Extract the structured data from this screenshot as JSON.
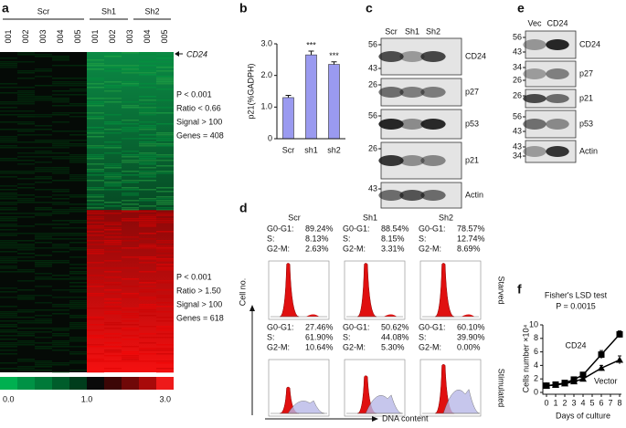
{
  "panels": {
    "a": {
      "label": "a",
      "groups": [
        "Scr",
        "Sh1",
        "Sh2"
      ],
      "samples": [
        "001",
        "002",
        "003",
        "004",
        "005",
        "001",
        "002",
        "003",
        "004",
        "005"
      ],
      "gene": "CD24",
      "blocks": [
        [
          "P < 0.001",
          "Ratio < 0.66",
          "Signal > 100",
          "Genes = 408"
        ],
        [
          "P < 0.001",
          "Ratio > 1.50",
          "Signal > 100",
          "Genes = 618"
        ]
      ],
      "scale": [
        "0.0",
        "1.0",
        "3.0"
      ]
    },
    "c": {
      "label": "c",
      "lanes": [
        "Scr",
        "Sh1",
        "Sh2"
      ],
      "blots": [
        {
          "name": "CD24",
          "markers": [
            56,
            43
          ]
        },
        {
          "name": "p27",
          "markers": [
            26
          ]
        },
        {
          "name": "p53",
          "markers": [
            56
          ]
        },
        {
          "name": "p21",
          "markers": [
            26
          ]
        },
        {
          "name": "Actin",
          "markers": [
            43
          ]
        }
      ]
    },
    "d": {
      "label": "d",
      "columns": [
        "Scr",
        "Sh1",
        "Sh2"
      ],
      "rows": [
        "Starved",
        "Stimulated"
      ],
      "phases": [
        "G0-G1:",
        "S:",
        "G2-M:"
      ],
      "stats": [
        [
          [
            "89.24%",
            "8.13%",
            "2.63%"
          ],
          [
            "88.54%",
            "8.15%",
            "3.31%"
          ],
          [
            "78.57%",
            "12.74%",
            "8.69%"
          ]
        ],
        [
          [
            "27.46%",
            "61.90%",
            "10.64%"
          ],
          [
            "50.62%",
            "44.08%",
            "5.30%"
          ],
          [
            "60.10%",
            "39.90%",
            "0.00%"
          ]
        ]
      ],
      "ylabel": "Cell no.",
      "xlabel": "DNA content"
    },
    "e": {
      "label": "e",
      "lanes": [
        "Vec",
        "CD24"
      ],
      "blots": [
        {
          "name": "CD24",
          "markers": [
            56,
            43
          ]
        },
        {
          "name": "p27",
          "markers": [
            34,
            26
          ]
        },
        {
          "name": "p21",
          "markers": [
            26
          ]
        },
        {
          "name": "p53",
          "markers": [
            56,
            43
          ]
        },
        {
          "name": "Actin",
          "markers": [
            43,
            34
          ]
        }
      ]
    }
  },
  "chart_data": [
    {
      "panel": "b",
      "type": "bar",
      "ylabel": "p21(%GADPH)",
      "categories": [
        "Scr",
        "sh1",
        "sh2"
      ],
      "values": [
        1.3,
        2.65,
        2.35
      ],
      "errors": [
        0.07,
        0.12,
        0.08
      ],
      "annotations": [
        null,
        "***",
        "***"
      ],
      "color": "#9a9af0",
      "ylim": [
        0,
        3
      ],
      "yticks": [
        0,
        {
          "value": 1,
          "label": "1.0"
        },
        {
          "value": 2,
          "label": "2.0"
        },
        {
          "value": 3,
          "label": "3.0"
        }
      ]
    },
    {
      "panel": "f",
      "type": "line",
      "title": "Fisher's LSD test",
      "subtitle": "P = 0.0015",
      "xlabel": "Days of culture",
      "ylabel": "Cells number ×10⁴",
      "x": [
        0,
        1,
        2,
        3,
        4,
        6,
        8
      ],
      "series": [
        {
          "name": "CD24",
          "color": "#000000",
          "marker": "square",
          "values": [
            1.0,
            1.15,
            1.4,
            1.9,
            2.6,
            5.6,
            8.6
          ],
          "errors": [
            0.1,
            0.1,
            0.15,
            0.2,
            0.3,
            0.6,
            0.5
          ]
        },
        {
          "name": "Vector",
          "color": "#000000",
          "marker": "triangle",
          "values": [
            1.0,
            1.1,
            1.3,
            1.6,
            2.0,
            3.6,
            4.8
          ],
          "errors": [
            0.1,
            0.1,
            0.1,
            0.15,
            0.2,
            0.4,
            0.6
          ]
        }
      ],
      "xlim": [
        0,
        8
      ],
      "xticks": [
        0,
        1,
        2,
        3,
        4,
        5,
        6,
        7,
        8
      ],
      "ylim": [
        0,
        10
      ],
      "yticks": [
        0,
        2,
        4,
        6,
        8,
        10
      ]
    }
  ]
}
